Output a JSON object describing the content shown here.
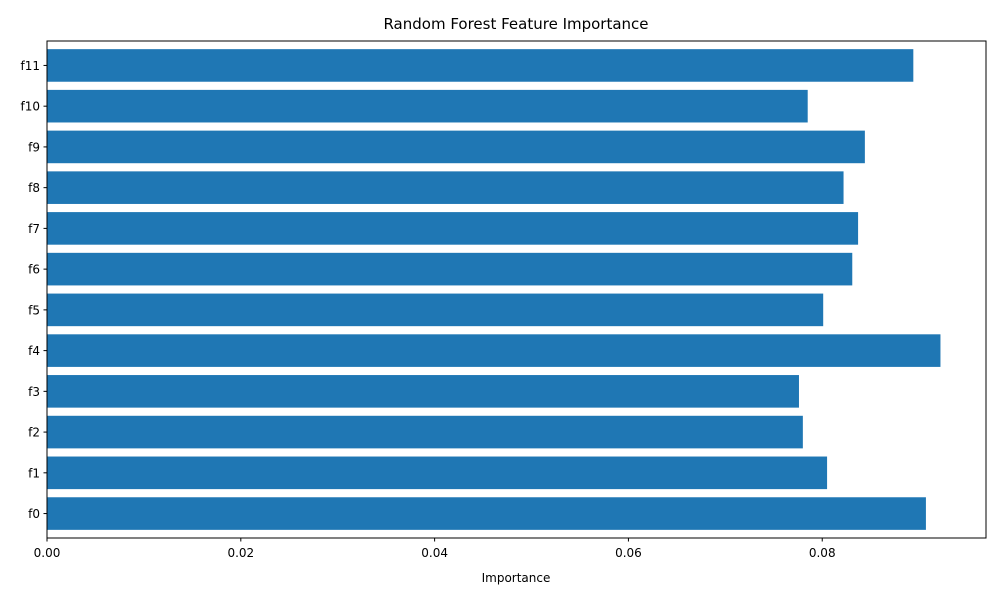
{
  "chart_data": {
    "type": "bar",
    "orientation": "horizontal",
    "title": "Random Forest Feature Importance",
    "xlabel": "Importance",
    "ylabel": "",
    "categories": [
      "f0",
      "f1",
      "f2",
      "f3",
      "f4",
      "f5",
      "f6",
      "f7",
      "f8",
      "f9",
      "f10",
      "f11"
    ],
    "values": [
      0.0907,
      0.0805,
      0.078,
      0.0776,
      0.0922,
      0.0801,
      0.0831,
      0.0837,
      0.0822,
      0.0844,
      0.0785,
      0.0894
    ],
    "xlim": [
      0,
      0.0969
    ],
    "xticks": [
      0.0,
      0.02,
      0.04,
      0.06,
      0.08
    ],
    "xtick_labels": [
      "0.00",
      "0.02",
      "0.04",
      "0.06",
      "0.08"
    ],
    "grid": false,
    "bar_color": "#1f77b4"
  }
}
